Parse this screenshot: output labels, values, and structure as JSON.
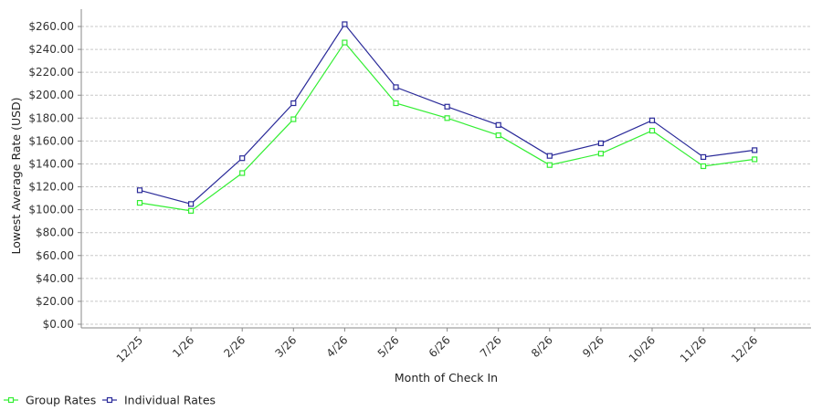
{
  "chart_data": {
    "type": "line",
    "title": "",
    "xlabel": "Month of Check In",
    "ylabel": "Lowest Average Rate (USD)",
    "ylim": [
      0,
      270
    ],
    "yticks": [
      0,
      20,
      40,
      60,
      80,
      100,
      120,
      140,
      160,
      180,
      200,
      220,
      240,
      260
    ],
    "ytick_labels": [
      "$0.00",
      "$20.00",
      "$40.00",
      "$60.00",
      "$80.00",
      "$100.00",
      "$120.00",
      "$140.00",
      "$160.00",
      "$180.00",
      "$200.00",
      "$220.00",
      "$240.00",
      "$260.00"
    ],
    "categories": [
      "12/25",
      "1/26",
      "2/26",
      "3/26",
      "4/26",
      "5/26",
      "6/26",
      "7/26",
      "8/26",
      "9/26",
      "10/26",
      "11/26",
      "12/26"
    ],
    "grid": true,
    "legend_position": "bottom-left",
    "series": [
      {
        "name": "Group Rates",
        "color": "#33ee33",
        "values": [
          106,
          99,
          132,
          179,
          246,
          193,
          180,
          165,
          139,
          149,
          169,
          138,
          144
        ]
      },
      {
        "name": "Individual Rates",
        "color": "#2a2a99",
        "values": [
          117,
          105,
          145,
          193,
          262,
          207,
          190,
          174,
          147,
          158,
          178,
          146,
          152
        ]
      }
    ]
  }
}
